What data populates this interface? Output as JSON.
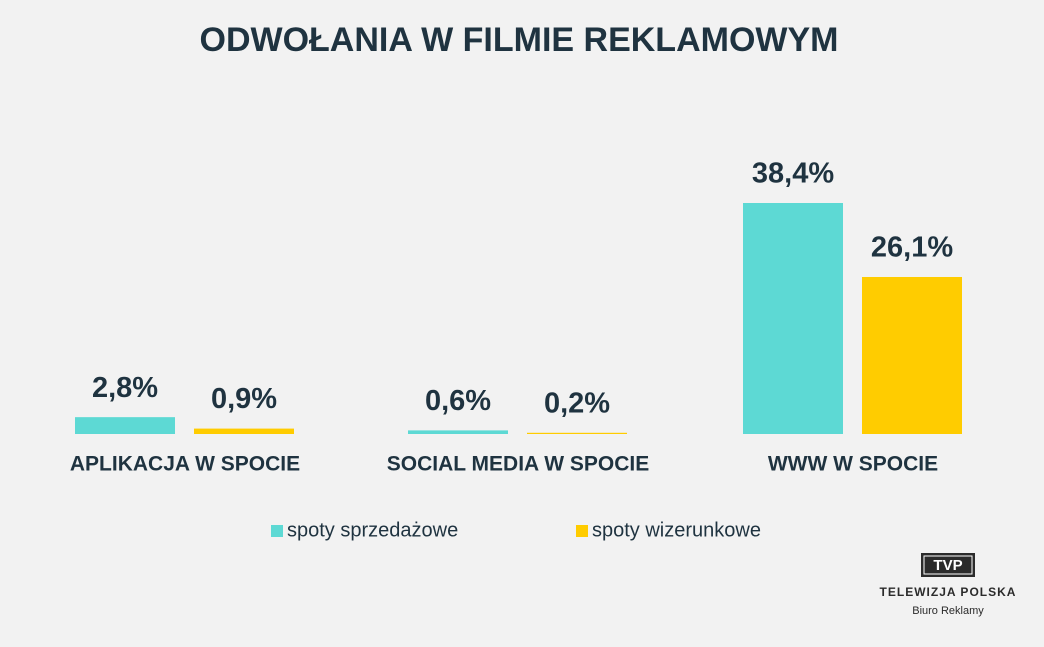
{
  "chart_data": {
    "type": "bar",
    "title": "ODWOŁANIA W FILMIE REKLAMOWYM",
    "categories": [
      "APLIKACJA W SPOCIE",
      "SOCIAL MEDIA W SPOCIE",
      "WWW W SPOCIE"
    ],
    "series": [
      {
        "name": "spoty sprzedażowe",
        "color": "#5dd9d4",
        "values": [
          2.8,
          0.6,
          38.4
        ],
        "value_labels": [
          "2,8%",
          "0,6%",
          "38,4%"
        ]
      },
      {
        "name": "spoty wizerunkowe",
        "color": "#ffcc00",
        "values": [
          0.9,
          0.2,
          26.1
        ],
        "value_labels": [
          "0,9%",
          "0,2%",
          "26,1%"
        ]
      }
    ]
  },
  "logo": {
    "mark": "TVP",
    "name": "TELEWIZJA POLSKA",
    "subtitle": "Biuro Reklamy"
  }
}
